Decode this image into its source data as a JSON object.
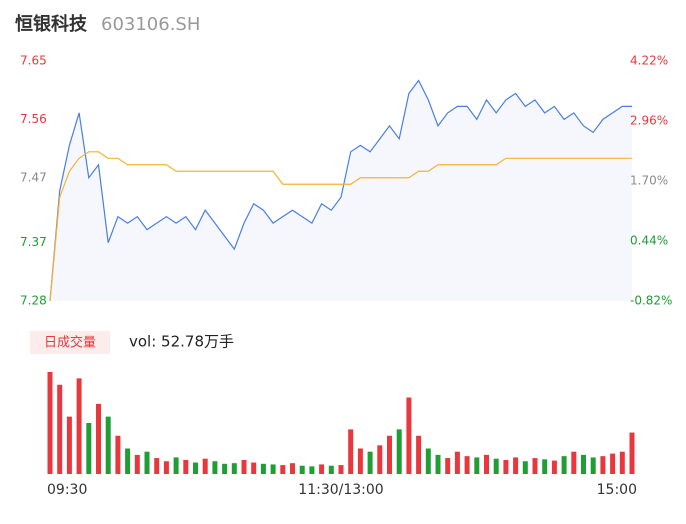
{
  "chart_data": {
    "type": "line",
    "title": "恒银科技",
    "subtitle": "603106.SH",
    "categories": [
      "09:30",
      null,
      null,
      null,
      null,
      null,
      null,
      null,
      null,
      null,
      null,
      null,
      null,
      null,
      null,
      null,
      null,
      null,
      null,
      null,
      null,
      null,
      null,
      null,
      null,
      null,
      null,
      null,
      null,
      null,
      "11:30/13:00",
      null,
      null,
      null,
      null,
      null,
      null,
      null,
      null,
      null,
      null,
      null,
      null,
      null,
      null,
      null,
      null,
      null,
      null,
      null,
      null,
      null,
      null,
      null,
      null,
      null,
      null,
      null,
      null,
      null,
      "15:00"
    ],
    "series": [
      {
        "color": "#4a7fe0",
        "fill": "#f5f7fd",
        "values": [
          7.28,
          7.45,
          7.52,
          7.57,
          7.47,
          7.49,
          7.37,
          7.41,
          7.4,
          7.41,
          7.39,
          7.4,
          7.41,
          7.4,
          7.41,
          7.39,
          7.42,
          7.4,
          7.38,
          7.36,
          7.4,
          7.43,
          7.42,
          7.4,
          7.41,
          7.42,
          7.41,
          7.4,
          7.43,
          7.42,
          7.44,
          7.51,
          7.52,
          7.51,
          7.53,
          7.55,
          7.53,
          7.6,
          7.62,
          7.59,
          7.55,
          7.57,
          7.58,
          7.58,
          7.56,
          7.59,
          7.57,
          7.59,
          7.6,
          7.58,
          7.59,
          7.57,
          7.58,
          7.56,
          7.57,
          7.55,
          7.54,
          7.56,
          7.57,
          7.58,
          7.58
        ]
      },
      {
        "color": "#f5b335",
        "values": [
          7.28,
          7.44,
          7.48,
          7.5,
          7.51,
          7.51,
          7.5,
          7.5,
          7.49,
          7.49,
          7.49,
          7.49,
          7.49,
          7.48,
          7.48,
          7.48,
          7.48,
          7.48,
          7.48,
          7.48,
          7.48,
          7.48,
          7.48,
          7.48,
          7.46,
          7.46,
          7.46,
          7.46,
          7.46,
          7.46,
          7.46,
          7.46,
          7.47,
          7.47,
          7.47,
          7.47,
          7.47,
          7.47,
          7.48,
          7.48,
          7.49,
          7.49,
          7.49,
          7.49,
          7.49,
          7.49,
          7.49,
          7.5,
          7.5,
          7.5,
          7.5,
          7.5,
          7.5,
          7.5,
          7.5,
          7.5,
          7.5,
          7.5,
          7.5,
          7.5,
          7.5
        ]
      }
    ],
    "ylim": [
      7.28,
      7.65
    ],
    "yticks": [
      7.65,
      7.56,
      7.47,
      7.37,
      7.28
    ],
    "y2lim": [
      -0.82,
      4.22
    ],
    "y2ticks": [
      {
        "value": 4.22,
        "label": "4.22%"
      },
      {
        "value": 2.96,
        "label": "2.96%"
      },
      {
        "value": 1.7,
        "label": "1.70%"
      },
      {
        "value": 0.44,
        "label": "0.44%"
      },
      {
        "value": -0.82,
        "label": "-0.82%"
      }
    ],
    "up_color": "#e8383d",
    "down_color": "#1e9e35",
    "flat_color": "#8a8a8a",
    "volume": {
      "title": "日成交量",
      "label": "vol: 52.78万手",
      "values": [
        16000,
        14000,
        9000,
        15000,
        8000,
        11000,
        9000,
        6000,
        4000,
        3000,
        3500,
        2500,
        2000,
        2600,
        2200,
        1800,
        2400,
        2000,
        1600,
        1700,
        2200,
        1800,
        1600,
        1500,
        1400,
        1700,
        1300,
        1200,
        1500,
        1300,
        1400,
        7000,
        4000,
        3500,
        4500,
        6000,
        7000,
        12000,
        6000,
        4000,
        3000,
        2500,
        3500,
        2800,
        2600,
        3000,
        2400,
        2200,
        2600,
        2000,
        2500,
        2300,
        2100,
        2800,
        3500,
        3000,
        2600,
        2800,
        3200,
        3500,
        6500
      ]
    }
  }
}
